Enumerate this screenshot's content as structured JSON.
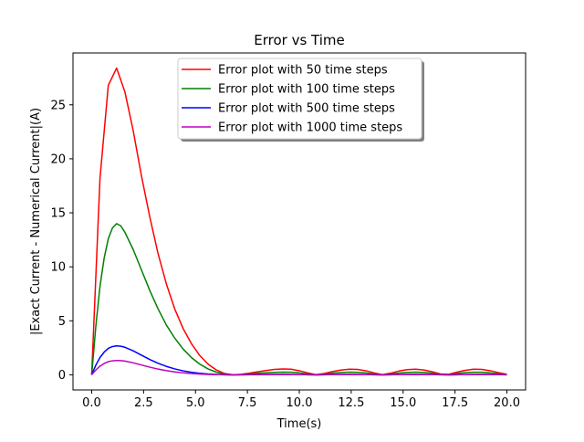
{
  "chart_data": {
    "type": "line",
    "title": "Error vs Time",
    "xlabel": "Time(s)",
    "ylabel": "|Exact Current - Numerical Current|(A)",
    "xlim": [
      -0.9,
      20.9
    ],
    "ylim": [
      -1.4,
      29.8
    ],
    "xticks": [
      0.0,
      2.5,
      5.0,
      7.5,
      10.0,
      12.5,
      15.0,
      17.5,
      20.0
    ],
    "xtick_labels": [
      "0.0",
      "2.5",
      "5.0",
      "7.5",
      "10.0",
      "12.5",
      "15.0",
      "17.5",
      "20.0"
    ],
    "yticks": [
      0,
      5,
      10,
      15,
      20,
      25
    ],
    "ytick_labels": [
      "0",
      "5",
      "10",
      "15",
      "20",
      "25"
    ],
    "grid": false,
    "legend_position": "top-center",
    "series": [
      {
        "name": "Error plot with 50 time steps",
        "color": "#ff0000",
        "x": [
          0.0,
          0.4,
          0.8,
          1.2,
          1.6,
          2.0,
          2.4,
          2.8,
          3.2,
          3.6,
          4.0,
          4.4,
          4.8,
          5.2,
          5.6,
          6.0,
          6.4,
          6.8,
          7.2,
          7.6,
          8.0,
          8.4,
          8.8,
          9.2,
          9.6,
          10.0,
          10.4,
          10.8,
          11.2,
          11.6,
          12.0,
          12.4,
          12.8,
          13.2,
          13.6,
          14.0,
          14.4,
          14.8,
          15.2,
          15.6,
          16.0,
          16.4,
          16.8,
          17.2,
          17.6,
          18.0,
          18.4,
          18.8,
          19.2,
          19.6,
          20.0
        ],
        "y": [
          0.0,
          18.2,
          26.8,
          28.4,
          26.2,
          22.6,
          18.4,
          14.6,
          11.2,
          8.4,
          6.1,
          4.3,
          2.9,
          1.8,
          1.0,
          0.45,
          0.12,
          0.0,
          0.05,
          0.15,
          0.28,
          0.4,
          0.5,
          0.55,
          0.52,
          0.38,
          0.18,
          0.02,
          0.12,
          0.3,
          0.44,
          0.52,
          0.5,
          0.38,
          0.18,
          0.02,
          0.15,
          0.35,
          0.48,
          0.52,
          0.45,
          0.28,
          0.08,
          0.05,
          0.25,
          0.42,
          0.52,
          0.5,
          0.38,
          0.2,
          0.05
        ]
      },
      {
        "name": "Error plot with 100 time steps",
        "color": "#008000",
        "x": [
          0.0,
          0.2,
          0.4,
          0.6,
          0.8,
          1.0,
          1.2,
          1.4,
          1.6,
          2.0,
          2.4,
          2.8,
          3.2,
          3.6,
          4.0,
          4.4,
          4.8,
          5.2,
          5.6,
          6.0,
          6.4,
          6.8,
          7.2,
          7.6,
          8.0,
          8.4,
          8.8,
          9.2,
          9.6,
          10.0,
          10.4,
          10.8,
          11.2,
          11.6,
          12.0,
          12.4,
          12.8,
          13.2,
          13.6,
          14.0,
          14.4,
          14.8,
          15.2,
          15.6,
          16.0,
          16.4,
          16.8,
          17.2,
          17.6,
          18.0,
          18.4,
          18.8,
          19.2,
          19.6,
          20.0
        ],
        "y": [
          0.0,
          4.5,
          8.2,
          10.8,
          12.6,
          13.6,
          14.0,
          13.8,
          13.2,
          11.6,
          9.7,
          7.8,
          6.1,
          4.6,
          3.4,
          2.4,
          1.6,
          1.0,
          0.55,
          0.25,
          0.07,
          0.0,
          0.03,
          0.08,
          0.14,
          0.19,
          0.23,
          0.25,
          0.24,
          0.18,
          0.08,
          0.0,
          0.06,
          0.15,
          0.21,
          0.25,
          0.23,
          0.17,
          0.08,
          0.0,
          0.07,
          0.16,
          0.22,
          0.25,
          0.22,
          0.14,
          0.04,
          0.02,
          0.12,
          0.2,
          0.24,
          0.24,
          0.18,
          0.1,
          0.03
        ]
      },
      {
        "name": "Error plot with 500 time steps",
        "color": "#0000ff",
        "x": [
          0.0,
          0.2,
          0.4,
          0.6,
          0.8,
          1.0,
          1.2,
          1.4,
          1.6,
          2.0,
          2.4,
          2.8,
          3.2,
          3.6,
          4.0,
          4.4,
          4.8,
          5.2,
          5.6,
          6.0,
          6.4,
          6.8,
          7.6,
          8.4,
          9.2,
          10.0,
          10.8,
          11.6,
          12.4,
          13.2,
          14.0,
          14.8,
          15.6,
          16.4,
          17.2,
          18.0,
          18.8,
          19.6,
          20.0
        ],
        "y": [
          0.0,
          0.9,
          1.6,
          2.1,
          2.45,
          2.62,
          2.68,
          2.65,
          2.55,
          2.22,
          1.82,
          1.42,
          1.07,
          0.78,
          0.55,
          0.37,
          0.24,
          0.14,
          0.08,
          0.04,
          0.01,
          0.0,
          0.02,
          0.04,
          0.05,
          0.03,
          0.0,
          0.03,
          0.05,
          0.03,
          0.0,
          0.03,
          0.05,
          0.03,
          0.0,
          0.03,
          0.05,
          0.03,
          0.01
        ]
      },
      {
        "name": "Error plot with 1000 time steps",
        "color": "#bf00bf",
        "x": [
          0.0,
          0.2,
          0.4,
          0.6,
          0.8,
          1.0,
          1.2,
          1.4,
          1.6,
          2.0,
          2.4,
          2.8,
          3.2,
          3.6,
          4.0,
          4.4,
          4.8,
          5.2,
          5.6,
          6.0,
          6.4,
          6.8,
          7.6,
          8.4,
          9.2,
          10.0,
          10.8,
          11.6,
          12.4,
          13.2,
          14.0,
          14.8,
          15.6,
          16.4,
          17.2,
          18.0,
          18.8,
          19.6,
          20.0
        ],
        "y": [
          0.0,
          0.45,
          0.8,
          1.05,
          1.22,
          1.3,
          1.33,
          1.32,
          1.27,
          1.11,
          0.91,
          0.71,
          0.53,
          0.39,
          0.27,
          0.18,
          0.12,
          0.07,
          0.04,
          0.02,
          0.005,
          0.0,
          0.01,
          0.02,
          0.025,
          0.015,
          0.0,
          0.015,
          0.025,
          0.015,
          0.0,
          0.015,
          0.025,
          0.015,
          0.0,
          0.015,
          0.025,
          0.015,
          0.005
        ]
      }
    ]
  }
}
